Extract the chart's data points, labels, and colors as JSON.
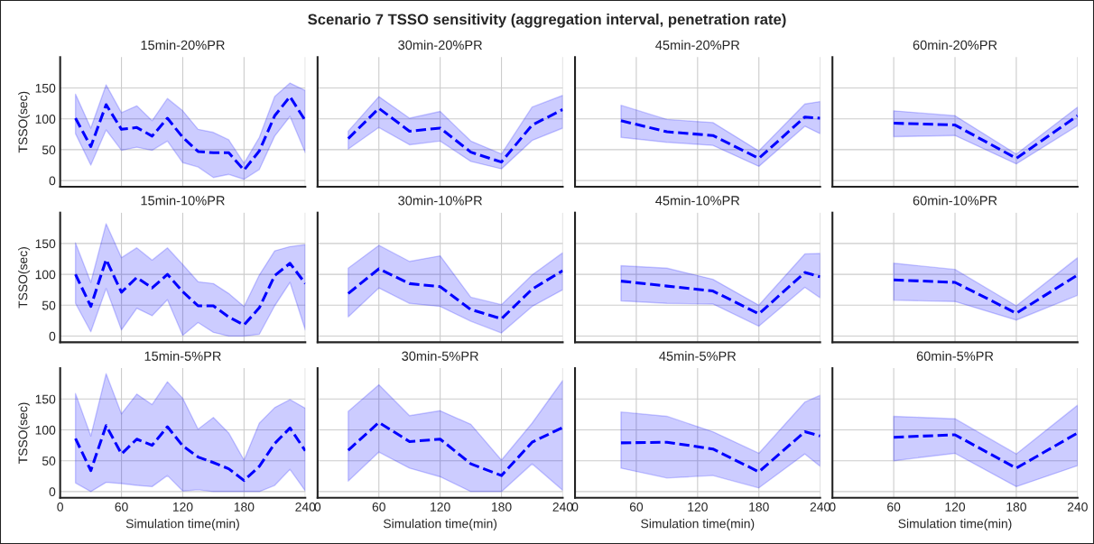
{
  "chart_data": [
    {
      "type": "line",
      "title": "15min-20%PR",
      "annotations": [
        "Scenario 7 TSSO sensitivity (aggregation interval, penetration rate)"
      ],
      "ylabel": "TSSO(sec)",
      "tick_labels": "y",
      "x": [
        15,
        30,
        45,
        60,
        75,
        90,
        105,
        120,
        135,
        150,
        165,
        180,
        195,
        210,
        225,
        240
      ],
      "series": [
        {
          "color": "#0000ff",
          "values": [
            101,
            55,
            123,
            83,
            86,
            72,
            101,
            70,
            47,
            45,
            45,
            17,
            48,
            105,
            136,
            97
          ],
          "lower": [
            76,
            25,
            82,
            49,
            54,
            49,
            64,
            29,
            22,
            5,
            10,
            2,
            18,
            72,
            104,
            45
          ],
          "upper": [
            140,
            85,
            155,
            110,
            121,
            97,
            133,
            113,
            83,
            78,
            66,
            28,
            70,
            136,
            158,
            146
          ]
        }
      ],
      "xlim": [
        0,
        240
      ],
      "ylim": [
        -10,
        200
      ],
      "xticks": [
        0,
        60,
        120,
        180,
        240
      ],
      "yticks": [
        0,
        50,
        100,
        150
      ],
      "grid": true,
      "line_style": "dashed"
    },
    {
      "type": "line",
      "title": "30min-20%PR",
      "tick_labels": false,
      "x": [
        30,
        60,
        90,
        120,
        150,
        180,
        210,
        240
      ],
      "series": [
        {
          "color": "#0000ff",
          "values": [
            68,
            117,
            80,
            85,
            46,
            30,
            90,
            115
          ],
          "lower": [
            51,
            86,
            58,
            64,
            31,
            19,
            65,
            85
          ],
          "upper": [
            80,
            136,
            101,
            112,
            64,
            43,
            119,
            138
          ]
        }
      ],
      "xlim": [
        0,
        240
      ],
      "ylim": [
        -10,
        200
      ],
      "xticks": [
        0,
        60,
        120,
        180,
        240
      ],
      "yticks": [
        0,
        50,
        100,
        150
      ],
      "grid": true,
      "line_style": "dashed"
    },
    {
      "type": "line",
      "title": "45min-20%PR",
      "tick_labels": false,
      "x": [
        45,
        90,
        135,
        180,
        225,
        240
      ],
      "series": [
        {
          "color": "#0000ff",
          "values": [
            97,
            79,
            73,
            36,
            103,
            101
          ],
          "lower": [
            70,
            62,
            57,
            23,
            88,
            76
          ],
          "upper": [
            122,
            99,
            94,
            48,
            124,
            128
          ]
        }
      ],
      "xlim": [
        0,
        240
      ],
      "ylim": [
        -10,
        200
      ],
      "xticks": [
        0,
        60,
        120,
        180,
        240
      ],
      "yticks": [
        0,
        50,
        100,
        150
      ],
      "grid": true,
      "line_style": "dashed"
    },
    {
      "type": "line",
      "title": "60min-20%PR",
      "tick_labels": false,
      "x": [
        60,
        120,
        180,
        240
      ],
      "series": [
        {
          "color": "#0000ff",
          "values": [
            93,
            90,
            36,
            105
          ],
          "lower": [
            71,
            73,
            27,
            89
          ],
          "upper": [
            113,
            105,
            43,
            119
          ]
        }
      ],
      "xlim": [
        0,
        240
      ],
      "ylim": [
        -10,
        200
      ],
      "xticks": [
        0,
        60,
        120,
        180,
        240
      ],
      "yticks": [
        0,
        50,
        100,
        150
      ],
      "grid": true,
      "line_style": "dashed"
    },
    {
      "type": "line",
      "title": "15min-10%PR",
      "ylabel": "TSSO(sec)",
      "tick_labels": "y",
      "x": [
        15,
        30,
        45,
        60,
        75,
        90,
        105,
        120,
        135,
        150,
        165,
        180,
        195,
        210,
        225,
        240
      ],
      "series": [
        {
          "color": "#0000ff",
          "values": [
            100,
            48,
            124,
            71,
            95,
            78,
            100,
            72,
            49,
            49,
            31,
            18,
            46,
            98,
            118,
            85
          ],
          "lower": [
            53,
            7,
            77,
            10,
            45,
            33,
            59,
            1,
            22,
            6,
            0,
            0,
            3,
            49,
            87,
            10
          ],
          "upper": [
            151,
            87,
            182,
            127,
            143,
            123,
            143,
            116,
            88,
            85,
            69,
            48,
            99,
            138,
            145,
            148
          ]
        }
      ],
      "xlim": [
        0,
        240
      ],
      "ylim": [
        -10,
        200
      ],
      "xticks": [
        0,
        60,
        120,
        180,
        240
      ],
      "yticks": [
        0,
        50,
        100,
        150
      ],
      "grid": true,
      "line_style": "dashed"
    },
    {
      "type": "line",
      "title": "30min-10%PR",
      "tick_labels": false,
      "x": [
        30,
        60,
        90,
        120,
        150,
        180,
        210,
        240
      ],
      "series": [
        {
          "color": "#0000ff",
          "values": [
            69,
            109,
            85,
            80,
            43,
            28,
            76,
            106
          ],
          "lower": [
            31,
            78,
            53,
            48,
            24,
            5,
            48,
            75
          ],
          "upper": [
            110,
            147,
            121,
            130,
            63,
            51,
            99,
            135
          ]
        }
      ],
      "xlim": [
        0,
        240
      ],
      "ylim": [
        -10,
        200
      ],
      "xticks": [
        0,
        60,
        120,
        180,
        240
      ],
      "yticks": [
        0,
        50,
        100,
        150
      ],
      "grid": true,
      "line_style": "dashed"
    },
    {
      "type": "line",
      "title": "45min-10%PR",
      "tick_labels": false,
      "x": [
        45,
        90,
        135,
        180,
        225,
        240
      ],
      "series": [
        {
          "color": "#0000ff",
          "values": [
            89,
            81,
            73,
            36,
            103,
            96
          ],
          "lower": [
            57,
            53,
            52,
            16,
            79,
            62
          ],
          "upper": [
            114,
            110,
            92,
            50,
            133,
            134
          ]
        }
      ],
      "xlim": [
        0,
        240
      ],
      "ylim": [
        -10,
        200
      ],
      "xticks": [
        0,
        60,
        120,
        180,
        240
      ],
      "yticks": [
        0,
        50,
        100,
        150
      ],
      "grid": true,
      "line_style": "dashed"
    },
    {
      "type": "line",
      "title": "60min-10%PR",
      "tick_labels": false,
      "x": [
        60,
        120,
        180,
        240
      ],
      "series": [
        {
          "color": "#0000ff",
          "values": [
            91,
            87,
            37,
            99
          ],
          "lower": [
            58,
            56,
            26,
            66
          ],
          "upper": [
            118,
            108,
            49,
            127
          ]
        }
      ],
      "xlim": [
        0,
        240
      ],
      "ylim": [
        -10,
        200
      ],
      "xticks": [
        0,
        60,
        120,
        180,
        240
      ],
      "yticks": [
        0,
        50,
        100,
        150
      ],
      "grid": true,
      "line_style": "dashed"
    },
    {
      "type": "line",
      "title": "15min-5%PR",
      "xlabel": "Simulation time(min)",
      "ylabel": "TSSO(sec)",
      "x": [
        15,
        30,
        45,
        60,
        75,
        90,
        105,
        120,
        135,
        150,
        165,
        180,
        195,
        210,
        225,
        240
      ],
      "series": [
        {
          "color": "#0000ff",
          "values": [
            86,
            34,
            107,
            61,
            85,
            75,
            105,
            74,
            56,
            47,
            37,
            18,
            41,
            78,
            103,
            66
          ],
          "lower": [
            14,
            0,
            15,
            13,
            10,
            8,
            26,
            1,
            3,
            0,
            0,
            0,
            0,
            10,
            36,
            1
          ],
          "upper": [
            159,
            90,
            191,
            126,
            158,
            141,
            178,
            151,
            101,
            120,
            95,
            51,
            111,
            136,
            149,
            135
          ]
        }
      ],
      "xlim": [
        0,
        240
      ],
      "ylim": [
        -10,
        200
      ],
      "xticks": [
        0,
        60,
        120,
        180,
        240
      ],
      "yticks": [
        0,
        50,
        100,
        150
      ],
      "grid": true,
      "line_style": "dashed"
    },
    {
      "type": "line",
      "title": "30min-5%PR",
      "xlabel": "Simulation time(min)",
      "tick_labels": "x",
      "x": [
        30,
        60,
        90,
        120,
        150,
        180,
        210,
        240
      ],
      "series": [
        {
          "color": "#0000ff",
          "values": [
            67,
            112,
            81,
            85,
            45,
            26,
            80,
            104
          ],
          "lower": [
            17,
            64,
            38,
            24,
            0,
            0,
            45,
            2
          ],
          "upper": [
            130,
            173,
            123,
            131,
            109,
            51,
            111,
            180
          ]
        }
      ],
      "xlim": [
        0,
        240
      ],
      "ylim": [
        -10,
        200
      ],
      "xticks": [
        0,
        60,
        120,
        180,
        240
      ],
      "yticks": [
        0,
        50,
        100,
        150
      ],
      "grid": true,
      "line_style": "dashed"
    },
    {
      "type": "line",
      "title": "45min-5%PR",
      "xlabel": "Simulation time(min)",
      "tick_labels": "x",
      "x": [
        45,
        90,
        135,
        180,
        225,
        240
      ],
      "series": [
        {
          "color": "#0000ff",
          "values": [
            79,
            80,
            69,
            32,
            97,
            90
          ],
          "lower": [
            38,
            22,
            26,
            6,
            61,
            41
          ],
          "upper": [
            129,
            122,
            97,
            62,
            145,
            156
          ]
        }
      ],
      "xlim": [
        0,
        240
      ],
      "ylim": [
        -10,
        200
      ],
      "xticks": [
        0,
        60,
        120,
        180,
        240
      ],
      "yticks": [
        0,
        50,
        100,
        150
      ],
      "grid": true,
      "line_style": "dashed"
    },
    {
      "type": "line",
      "title": "60min-5%PR",
      "xlabel": "Simulation time(min)",
      "tick_labels": "x",
      "x": [
        60,
        120,
        180,
        240
      ],
      "series": [
        {
          "color": "#0000ff",
          "values": [
            88,
            92,
            38,
            95
          ],
          "lower": [
            50,
            62,
            8,
            42
          ],
          "upper": [
            122,
            118,
            61,
            140
          ]
        }
      ],
      "xlim": [
        0,
        240
      ],
      "ylim": [
        -10,
        200
      ],
      "xticks": [
        0,
        60,
        120,
        180,
        240
      ],
      "yticks": [
        0,
        50,
        100,
        150
      ],
      "grid": true,
      "line_style": "dashed"
    }
  ]
}
